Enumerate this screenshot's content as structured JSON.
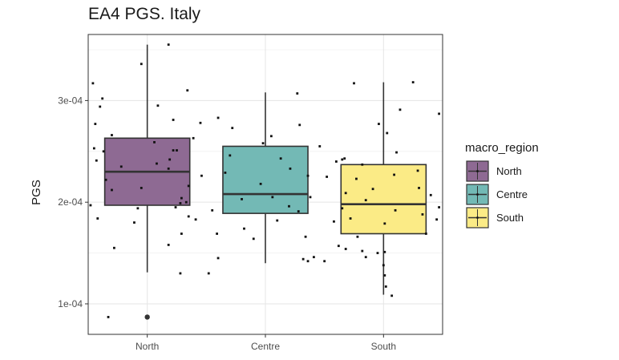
{
  "chart_data": {
    "type": "boxplot",
    "title": "EA4 PGS. Italy",
    "xlabel": "",
    "ylabel": "PGS",
    "ylim": [
      7e-05,
      0.000365
    ],
    "y_ticks": [
      {
        "value": 0.0001,
        "label": "1e-04"
      },
      {
        "value": 0.0002,
        "label": "2e-04"
      },
      {
        "value": 0.0003,
        "label": "3e-04"
      }
    ],
    "categories": [
      "North",
      "Centre",
      "South"
    ],
    "grid": true,
    "legend": {
      "title": "macro_region",
      "placement": "right",
      "entries": [
        "North",
        "Centre",
        "South"
      ]
    },
    "series": [
      {
        "category": "North",
        "color": "#8e6a93",
        "min": 0.000131,
        "q1": 0.000197,
        "median": 0.00023,
        "q3": 0.000263,
        "max": 0.000355,
        "outliers": [
          8.7e-05
        ],
        "points": [
          [
            -0.05,
            0.000336
          ],
          [
            -0.46,
            0.000317
          ],
          [
            0.34,
            0.00031
          ],
          [
            -0.38,
            0.000302
          ],
          [
            0.09,
            0.000295
          ],
          [
            -0.4,
            0.000294
          ],
          [
            0.22,
            0.000281
          ],
          [
            -0.44,
            0.000277
          ],
          [
            0.45,
            0.000278
          ],
          [
            -0.3,
            0.000266
          ],
          [
            0.39,
            0.000263
          ],
          [
            0.06,
            0.000259
          ],
          [
            -0.45,
            0.000253
          ],
          [
            0.22,
            0.000251
          ],
          [
            -0.37,
            0.00025
          ],
          [
            0.25,
            0.000251
          ],
          [
            -0.43,
            0.000241
          ],
          [
            0.08,
            0.000238
          ],
          [
            0.19,
            0.000242
          ],
          [
            -0.22,
            0.000235
          ],
          [
            0.18,
            0.000233
          ],
          [
            0.46,
            0.000226
          ],
          [
            -0.35,
            0.000222
          ],
          [
            0.35,
            0.000216
          ],
          [
            -0.05,
            0.000214
          ],
          [
            0.29,
            0.000204
          ],
          [
            -0.3,
            0.000212
          ],
          [
            0.33,
            0.0002
          ],
          [
            -0.48,
            0.000197
          ],
          [
            0.28,
            0.000199
          ],
          [
            0.24,
            0.000195
          ],
          [
            -0.08,
            0.000194
          ],
          [
            0.35,
            0.000186
          ],
          [
            -0.42,
            0.000184
          ],
          [
            -0.11,
            0.00018
          ],
          [
            0.41,
            0.000183
          ],
          [
            0.29,
            0.000169
          ],
          [
            0.18,
            0.000158
          ],
          [
            -0.28,
            0.000155
          ],
          [
            0.28,
            0.00013
          ],
          [
            0.52,
            0.00013
          ],
          [
            -0.33,
            8.7e-05
          ],
          [
            0.18,
            0.000355
          ]
        ]
      },
      {
        "category": "Centre",
        "color": "#73b9b5",
        "min": 0.00014,
        "q1": 0.000189,
        "median": 0.000208,
        "q3": 0.000255,
        "max": 0.000308,
        "outliers": [],
        "points": [
          [
            0.27,
            0.000307
          ],
          [
            -0.4,
            0.000283
          ],
          [
            -0.28,
            0.000273
          ],
          [
            0.05,
            0.000265
          ],
          [
            0.29,
            0.000276
          ],
          [
            0.46,
            0.000255
          ],
          [
            -0.02,
            0.000258
          ],
          [
            0.13,
            0.000243
          ],
          [
            -0.3,
            0.000246
          ],
          [
            0.21,
            0.000233
          ],
          [
            -0.34,
            0.000229
          ],
          [
            0.36,
            0.000226
          ],
          [
            -0.04,
            0.000218
          ],
          [
            0.06,
            0.000205
          ],
          [
            -0.2,
            0.000203
          ],
          [
            0.2,
            0.000196
          ],
          [
            0.28,
            0.000191
          ],
          [
            -0.45,
            0.000192
          ],
          [
            0.38,
            0.000205
          ],
          [
            -0.18,
            0.000174
          ],
          [
            0.1,
            0.000182
          ],
          [
            -0.41,
            0.000169
          ],
          [
            -0.1,
            0.000164
          ],
          [
            0.34,
            0.000166
          ],
          [
            -0.4,
            0.000145
          ],
          [
            0.32,
            0.000144
          ],
          [
            0.41,
            0.000146
          ],
          [
            0.36,
            0.000142
          ]
        ]
      },
      {
        "category": "South",
        "color": "#fbeb86",
        "min": 0.000109,
        "q1": 0.000169,
        "median": 0.000198,
        "q3": 0.000237,
        "max": 0.000318,
        "outliers": [],
        "points": [
          [
            -0.25,
            0.000317
          ],
          [
            0.25,
            0.000318
          ],
          [
            0.14,
            0.000291
          ],
          [
            0.47,
            0.000287
          ],
          [
            -0.04,
            0.000277
          ],
          [
            0.03,
            0.000268
          ],
          [
            0.11,
            0.000249
          ],
          [
            -0.35,
            0.000242
          ],
          [
            -0.33,
            0.000243
          ],
          [
            -0.4,
            0.00024
          ],
          [
            -0.18,
            0.000237
          ],
          [
            0.29,
            0.000231
          ],
          [
            -0.48,
            0.000225
          ],
          [
            0.09,
            0.000227
          ],
          [
            -0.23,
            0.000223
          ],
          [
            -0.09,
            0.000213
          ],
          [
            0.3,
            0.000214
          ],
          [
            -0.32,
            0.000209
          ],
          [
            0.4,
            0.000207
          ],
          [
            -0.15,
            0.000202
          ],
          [
            0.47,
            0.000195
          ],
          [
            -0.35,
            0.000194
          ],
          [
            0.1,
            0.000192
          ],
          [
            0.33,
            0.000188
          ],
          [
            -0.28,
            0.000184
          ],
          [
            -0.42,
            0.000181
          ],
          [
            0.45,
            0.000183
          ],
          [
            0.01,
            0.000179
          ],
          [
            0.36,
            0.000169
          ],
          [
            -0.22,
            0.000166
          ],
          [
            -0.38,
            0.000157
          ],
          [
            -0.32,
            0.000154
          ],
          [
            -0.18,
            0.000152
          ],
          [
            -0.05,
            0.00015
          ],
          [
            -0.15,
            0.000146
          ],
          [
            0.01,
            0.000151
          ],
          [
            -0.5,
            0.000142
          ],
          [
            0.0,
            0.000138
          ],
          [
            0.01,
            0.000128
          ],
          [
            0.02,
            0.000117
          ],
          [
            0.07,
            0.000108
          ]
        ]
      }
    ]
  }
}
